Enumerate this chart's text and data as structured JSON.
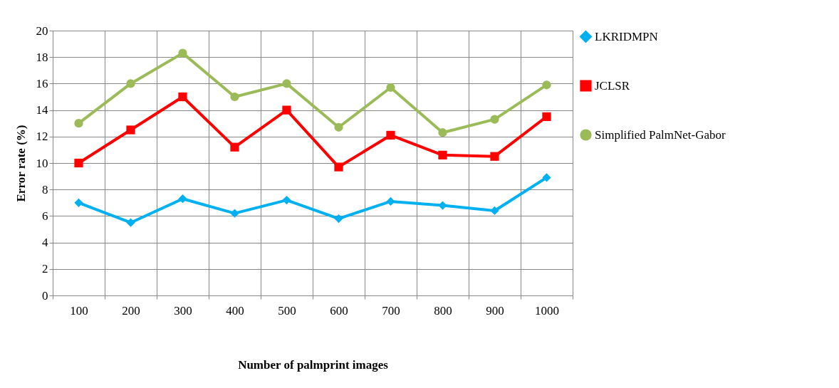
{
  "chart_data": {
    "type": "line",
    "xlabel": "Number of palmprint images",
    "ylabel": "Error rate (%)",
    "categories": [
      "100",
      "200",
      "300",
      "400",
      "500",
      "600",
      "700",
      "800",
      "900",
      "1000"
    ],
    "series": [
      {
        "name": "LKRIDMPN",
        "color": "#00b0f0",
        "marker": "diamond",
        "values": [
          7.0,
          5.5,
          7.3,
          6.2,
          7.2,
          5.8,
          7.1,
          6.8,
          6.4,
          8.9
        ]
      },
      {
        "name": "JCLSR",
        "color": "#ff0000",
        "marker": "square",
        "values": [
          10.0,
          12.5,
          15.0,
          11.2,
          14.0,
          9.7,
          12.1,
          10.6,
          10.5,
          13.5
        ]
      },
      {
        "name": "Simplified PalmNet-Gabor",
        "color": "#9bbb59",
        "marker": "circle",
        "values": [
          13.0,
          16.0,
          18.3,
          15.0,
          16.0,
          12.7,
          15.7,
          12.3,
          13.3,
          15.9
        ]
      }
    ],
    "ylim": [
      0,
      20
    ],
    "yticks": [
      0,
      2,
      4,
      6,
      8,
      10,
      12,
      14,
      16,
      18,
      20
    ],
    "grid": true,
    "legend": "right"
  }
}
